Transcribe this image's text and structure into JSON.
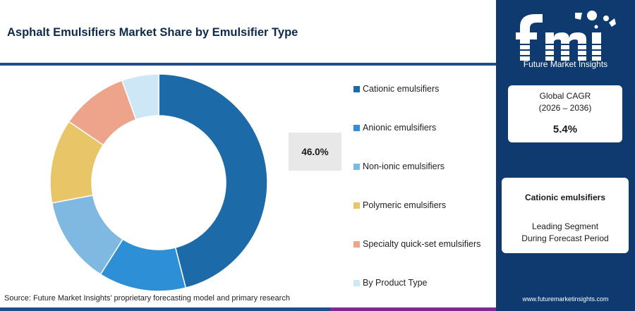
{
  "title": "Asphalt Emulsifiers Market Share by Emulsifier Type",
  "highlight_value": "46.0%",
  "source": "Source: Future Market Insights’ proprietary forecasting model and primary research",
  "sidebar": {
    "logo_text": "fmi",
    "brand": "Future Market Insights",
    "cagr_label": "Global CAGR",
    "cagr_period": "(2026 – 2036)",
    "cagr_value": "5.4%",
    "leading_segment": "Cationic emulsifiers",
    "leading_desc_line1": "Leading Segment",
    "leading_desc_line2": "During Forecast Period",
    "website": "www.futuremarketinsights.com"
  },
  "colors": {
    "accent_bar": "#1e4d8a",
    "sidebar_bg": "#0f3a70",
    "bottom_bar": [
      "#1e4d8a",
      "#d9622b",
      "#7b2a8e"
    ]
  },
  "chart_data": {
    "type": "pie",
    "style": "donut",
    "title": "Asphalt Emulsifiers Market Share by Emulsifier Type",
    "categories": [
      "Cationic emulsifiers",
      "Anionic emulsifiers",
      "Non-ionic emulsifiers",
      "Polymeric emulsifiers",
      "Specialty quick-set emulsifiers",
      "By Product Type"
    ],
    "values": [
      46.0,
      13.0,
      13.0,
      12.5,
      10.0,
      5.5
    ],
    "colors": [
      "#1c6aa8",
      "#2d8fd5",
      "#7fb8e0",
      "#e8c567",
      "#eea48b",
      "#cde7f6"
    ],
    "data_labels": [
      "46.0%"
    ],
    "legend_position": "right"
  }
}
